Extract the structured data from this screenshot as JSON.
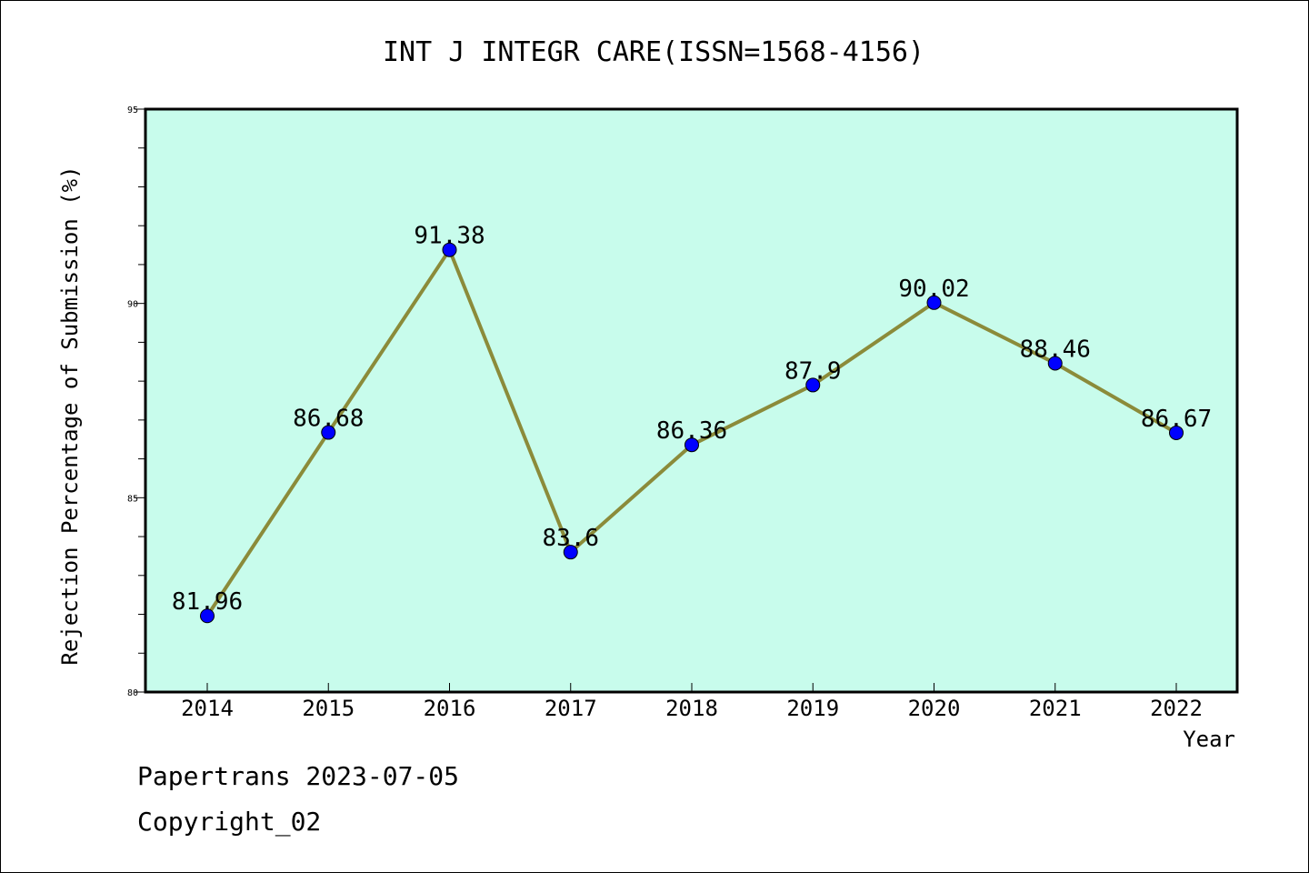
{
  "chart_data": {
    "type": "line",
    "title": "INT J INTEGR CARE(ISSN=1568-4156)",
    "xlabel": "Year",
    "ylabel": "Rejection Percentage of Submission (%)",
    "categories": [
      "2014",
      "2015",
      "2016",
      "2017",
      "2018",
      "2019",
      "2020",
      "2021",
      "2022"
    ],
    "series": [
      {
        "values": [
          81.96,
          86.68,
          91.38,
          83.6,
          86.36,
          87.9,
          90.02,
          88.46,
          86.67
        ],
        "labels": [
          "81.96",
          "86.68",
          "91.38",
          "83.6",
          "86.36",
          "87.9",
          "90.02",
          "88.46",
          "86.67"
        ]
      }
    ],
    "ylim": [
      80,
      95
    ],
    "yticks": [
      "80",
      "85",
      "90",
      "95"
    ],
    "grid": false,
    "colors": {
      "plot_background": "#c8fcec",
      "line": "#8b8b3a",
      "marker": "#0000ff"
    }
  },
  "footer": {
    "line1": "Papertrans 2023-07-05",
    "line2": "Copyright_02"
  }
}
